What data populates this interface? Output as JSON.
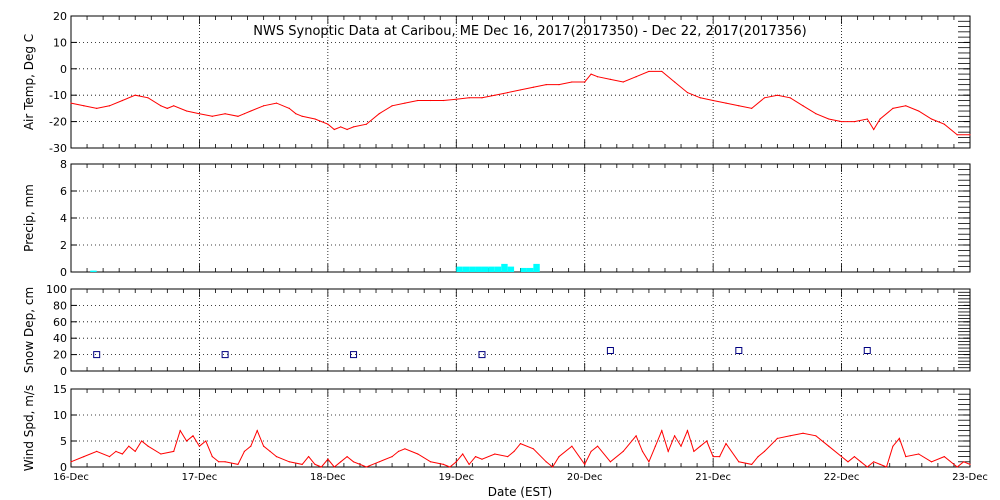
{
  "title": "NWS Synoptic Data at Caribou, ME    Dec 16, 2017(2017350) - Dec 22, 2017(2017356)",
  "xlabel": "Date (EST)",
  "x_ticks": [
    "16-Dec",
    "17-Dec",
    "18-Dec",
    "19-Dec",
    "20-Dec",
    "21-Dec",
    "22-Dec",
    "23-Dec"
  ],
  "colors": {
    "line": "#ff0000",
    "precip": "#00ffff",
    "snow": "#000080",
    "axis": "#000000"
  },
  "chart_data": [
    {
      "type": "line",
      "name": "air-temp",
      "ylabel": "Air Temp, Deg C",
      "ylim": [
        -30,
        20
      ],
      "yticks": [
        "20",
        "10",
        "0",
        "-10",
        "-20",
        "-30"
      ],
      "xlim": [
        0,
        7
      ],
      "x": [
        0,
        0.1,
        0.2,
        0.3,
        0.4,
        0.5,
        0.6,
        0.7,
        0.75,
        0.8,
        0.9,
        1.0,
        1.1,
        1.2,
        1.3,
        1.35,
        1.4,
        1.5,
        1.6,
        1.7,
        1.75,
        1.8,
        1.9,
        2.0,
        2.05,
        2.1,
        2.15,
        2.2,
        2.3,
        2.4,
        2.5,
        2.6,
        2.7,
        2.8,
        2.9,
        3.0,
        3.1,
        3.2,
        3.3,
        3.4,
        3.5,
        3.6,
        3.7,
        3.8,
        3.9,
        4.0,
        4.05,
        4.1,
        4.2,
        4.3,
        4.4,
        4.5,
        4.6,
        4.7,
        4.8,
        4.9,
        5.0,
        5.1,
        5.2,
        5.3,
        5.4,
        5.5,
        5.6,
        5.7,
        5.8,
        5.9,
        6.0,
        6.1,
        6.2,
        6.25,
        6.3,
        6.4,
        6.5,
        6.6,
        6.7,
        6.8,
        6.9,
        7.0
      ],
      "values": [
        -13,
        -14,
        -15,
        -14,
        -12,
        -10,
        -11,
        -14,
        -15,
        -14,
        -16,
        -17,
        -18,
        -17,
        -18,
        -17,
        -16,
        -14,
        -13,
        -15,
        -17,
        -18,
        -19,
        -21,
        -23,
        -22,
        -23,
        -22,
        -21,
        -17,
        -14,
        -13,
        -12,
        -12,
        -12,
        -11.5,
        -11,
        -11,
        -10,
        -9,
        -8,
        -7,
        -6,
        -6,
        -5,
        -5,
        -2,
        -3,
        -4,
        -5,
        -3,
        -1,
        -1,
        -5,
        -9,
        -11,
        -12,
        -13,
        -14,
        -15,
        -11,
        -10,
        -11,
        -14,
        -17,
        -19,
        -20,
        -20,
        -19,
        -23,
        -19,
        -15,
        -14,
        -16,
        -19,
        -21,
        -25,
        -25
      ]
    },
    {
      "type": "bar",
      "name": "precip",
      "ylabel": "Precip, mm",
      "ylim": [
        0,
        8
      ],
      "yticks": [
        "8",
        "6",
        "4",
        "2",
        "0"
      ],
      "xlim": [
        0,
        7
      ],
      "x": [
        0.15,
        3.0,
        3.05,
        3.1,
        3.15,
        3.2,
        3.25,
        3.3,
        3.35,
        3.4,
        3.5,
        3.55,
        3.6
      ],
      "values": [
        0.1,
        0.4,
        0.4,
        0.4,
        0.4,
        0.4,
        0.4,
        0.4,
        0.6,
        0.4,
        0.3,
        0.3,
        0.6
      ]
    },
    {
      "type": "scatter",
      "name": "snow-depth",
      "ylabel": "Snow Dep, cm",
      "ylim": [
        0,
        100
      ],
      "yticks": [
        "100",
        "80",
        "60",
        "40",
        "20",
        "0"
      ],
      "xlim": [
        0,
        7
      ],
      "x": [
        0.2,
        1.2,
        2.2,
        3.2,
        4.2,
        5.2,
        6.2
      ],
      "values": [
        20,
        20,
        20,
        20,
        25,
        25,
        25
      ]
    },
    {
      "type": "line",
      "name": "wind-speed",
      "ylabel": "Wind Spd, m/s",
      "ylim": [
        0,
        15
      ],
      "yticks": [
        "15",
        "10",
        "5",
        "0"
      ],
      "xlim": [
        0,
        7
      ],
      "x": [
        0,
        0.1,
        0.2,
        0.3,
        0.35,
        0.4,
        0.45,
        0.5,
        0.55,
        0.6,
        0.7,
        0.8,
        0.85,
        0.9,
        0.95,
        1.0,
        1.05,
        1.1,
        1.15,
        1.2,
        1.3,
        1.35,
        1.4,
        1.45,
        1.5,
        1.55,
        1.6,
        1.7,
        1.8,
        1.85,
        1.9,
        1.95,
        2.0,
        2.05,
        2.1,
        2.15,
        2.2,
        2.25,
        2.3,
        2.4,
        2.5,
        2.55,
        2.6,
        2.7,
        2.8,
        2.9,
        2.95,
        3.0,
        3.05,
        3.1,
        3.15,
        3.2,
        3.3,
        3.4,
        3.45,
        3.5,
        3.6,
        3.7,
        3.75,
        3.8,
        3.9,
        4.0,
        4.05,
        4.1,
        4.2,
        4.3,
        4.4,
        4.45,
        4.5,
        4.55,
        4.6,
        4.65,
        4.7,
        4.75,
        4.8,
        4.85,
        4.9,
        4.95,
        5.0,
        5.05,
        5.1,
        5.2,
        5.3,
        5.35,
        5.4,
        5.5,
        5.6,
        5.7,
        5.8,
        5.9,
        6.0,
        6.05,
        6.1,
        6.15,
        6.2,
        6.25,
        6.3,
        6.35,
        6.4,
        6.45,
        6.5,
        6.6,
        6.7,
        6.8,
        6.9,
        6.95,
        7.0
      ],
      "values": [
        1,
        2,
        3,
        2,
        3,
        2.5,
        4,
        3,
        5,
        4,
        2.5,
        3,
        7,
        5,
        6,
        4,
        5,
        2,
        1,
        1,
        0.5,
        3,
        4,
        7,
        4,
        3,
        2,
        1,
        0.5,
        2,
        0.5,
        0,
        1.5,
        0,
        1,
        2,
        1,
        0.5,
        0,
        1,
        2,
        3,
        3.5,
        2.5,
        1,
        0.5,
        0,
        1,
        2.5,
        0.5,
        2,
        1.5,
        2.5,
        2,
        3,
        4.5,
        3.5,
        1,
        0,
        2,
        4,
        0.5,
        3,
        4,
        1,
        3,
        6,
        3,
        1,
        4,
        7,
        3,
        6,
        4,
        7,
        3,
        4,
        5,
        2,
        2,
        4.5,
        1,
        0.5,
        2,
        3,
        5.5,
        6,
        6.5,
        6,
        4,
        2,
        1,
        2,
        1,
        0,
        1,
        0.5,
        0,
        4,
        5.5,
        2,
        2.5,
        1,
        2,
        0,
        1,
        0.5
      ]
    }
  ]
}
